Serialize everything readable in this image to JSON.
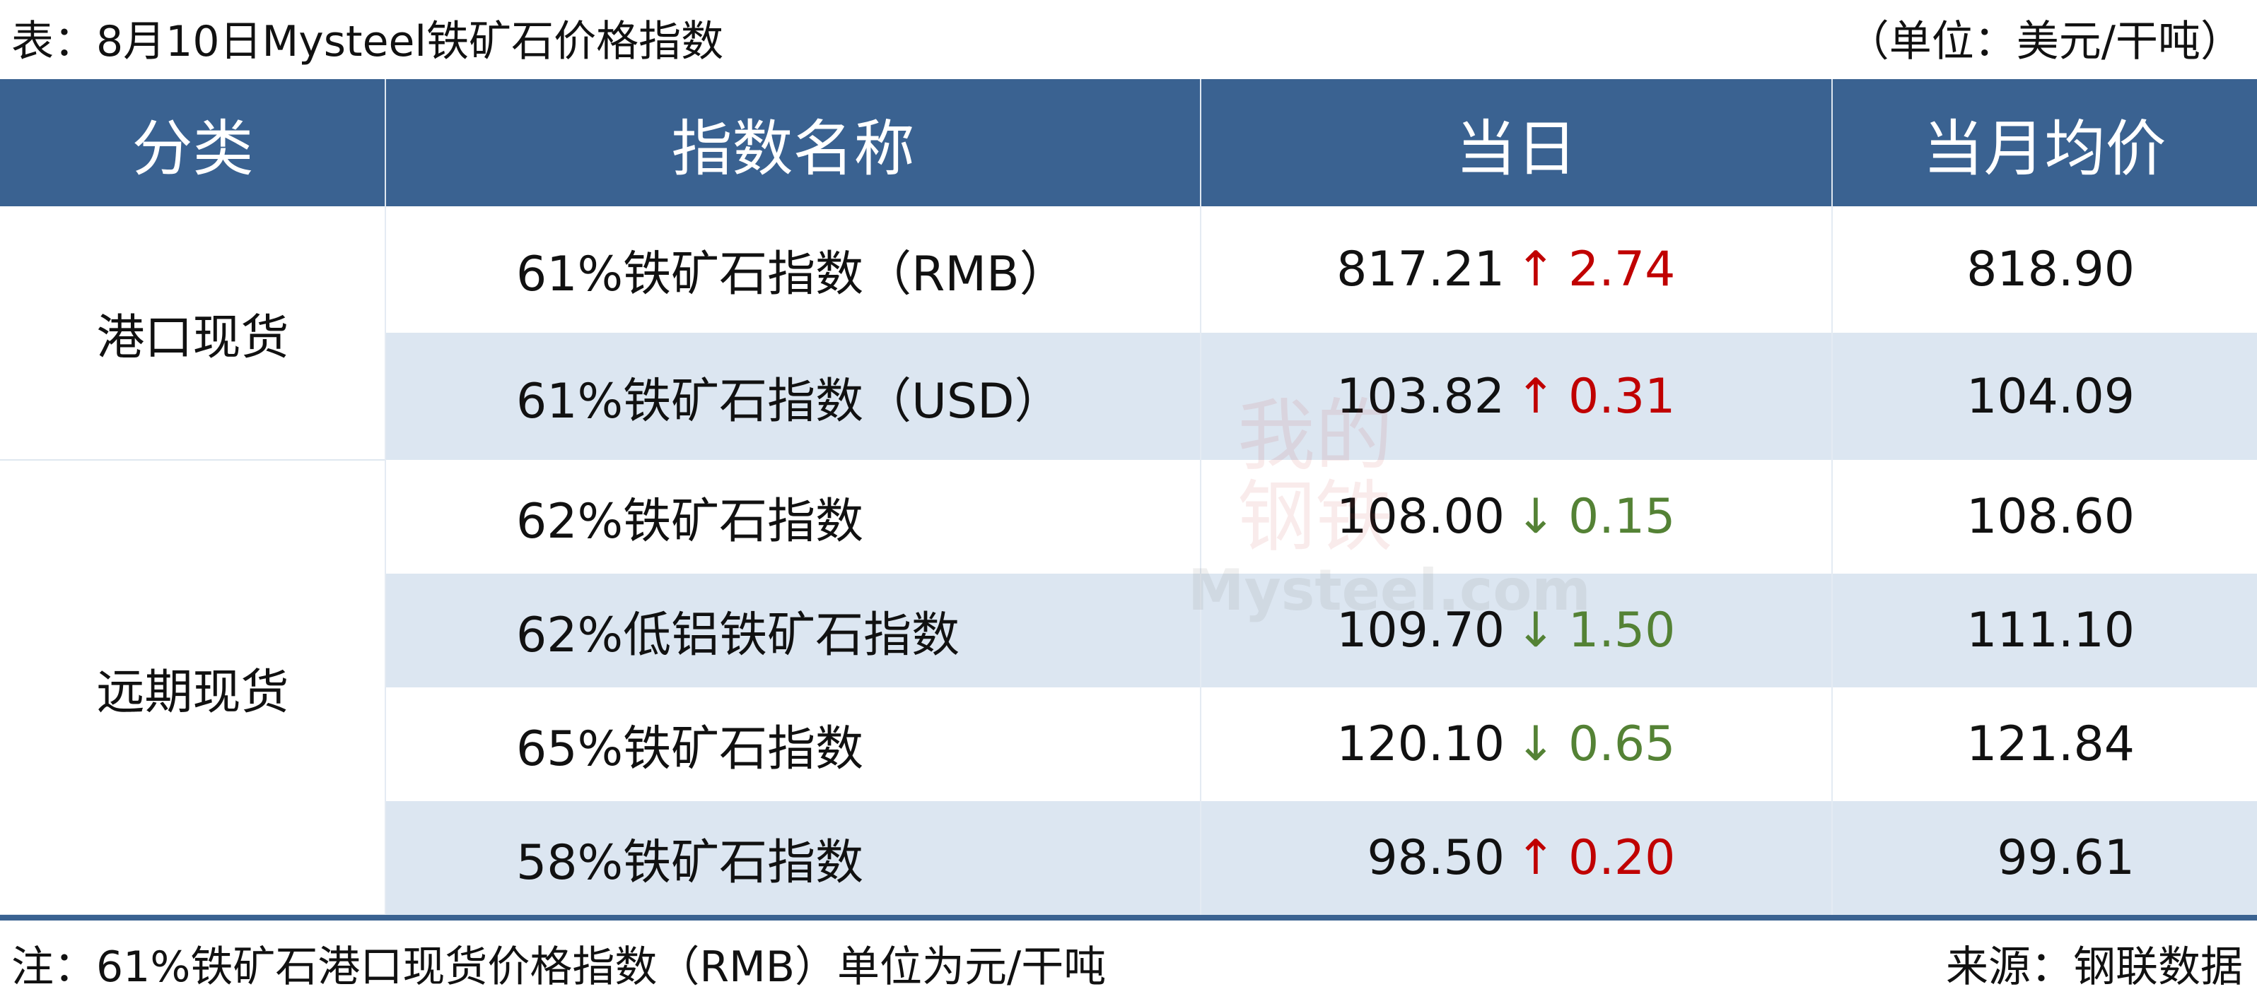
{
  "title": "表：8月10日Mysteel铁矿石价格指数",
  "unit": "（单位：美元/干吨）",
  "table": {
    "headers": [
      "分类",
      "指数名称",
      "当日",
      "当月均价"
    ],
    "groups": [
      {
        "name": "港口现货",
        "rows": [
          {
            "name": "61%铁矿石指数（RMB）",
            "value": "817.21",
            "arrow": "↑",
            "change": "2.74",
            "color": "#c00000",
            "average": "818.90"
          },
          {
            "name": "61%铁矿石指数（USD）",
            "value": "103.82",
            "arrow": "↑",
            "change": "0.31",
            "color": "#c00000",
            "average": "104.09"
          }
        ]
      },
      {
        "name": "远期现货",
        "rows": [
          {
            "name": "62%铁矿石指数",
            "value": "108.00",
            "arrow": "↓",
            "change": "0.15",
            "color": "#548235",
            "average": "108.60"
          },
          {
            "name": "62%低铝铁矿石指数",
            "value": "109.70",
            "arrow": "↓",
            "change": "1.50",
            "color": "#548235",
            "average": "111.10"
          },
          {
            "name": "65%铁矿石指数",
            "value": "120.10",
            "arrow": "↓",
            "change": "0.65",
            "color": "#548235",
            "average": "121.84"
          },
          {
            "name": "58%铁矿石指数",
            "value": "98.50",
            "arrow": "↑",
            "change": "0.20",
            "color": "#c00000",
            "average": "99.61"
          }
        ]
      }
    ]
  },
  "watermark": {
    "logo": "我的钢铁",
    "site": "Mysteel.com"
  },
  "note": "注：61%铁矿石港口现货价格指数（RMB）单位为元/干吨",
  "source": "来源：钢联数据"
}
